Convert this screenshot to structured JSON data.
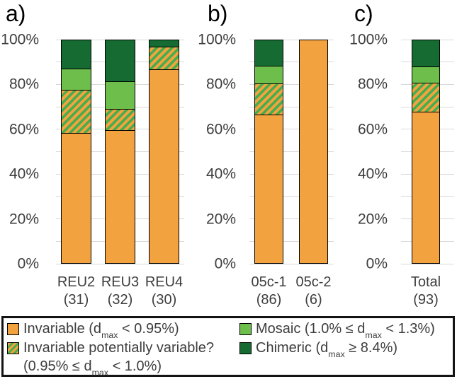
{
  "figure": {
    "background": "#FFFFFF"
  },
  "y_axis": {
    "tick_labels": [
      "0%",
      "20%",
      "40%",
      "60%",
      "80%",
      "100%"
    ],
    "minor_gridline_step_percent": 10,
    "range_percent": [
      0,
      100
    ],
    "grid": true
  },
  "chart_data": {
    "type": "bar",
    "stacked": true,
    "units": "percent",
    "series_order": [
      "invariable",
      "invariable_potentially_variable",
      "mosaic",
      "chimeric"
    ],
    "series_names": {
      "invariable": "Invariable (dmax < 0.95%)",
      "invariable_potentially_variable": "Invariable potentially variable? (0.95% <= dmax < 1.0%)",
      "mosaic": "Mosaic (1.0% <= dmax < 1.3%)",
      "chimeric": "Chimeric (dmax >= 8.4%)"
    },
    "panels": [
      {
        "id": "a",
        "letter": "a)",
        "bars": [
          {
            "label": "REU2",
            "n": "(31)",
            "segments": {
              "invariable": 58.1,
              "invariable_potentially_variable": 19.3,
              "mosaic": 9.7,
              "chimeric": 12.9
            }
          },
          {
            "label": "REU3",
            "n": "(32)",
            "segments": {
              "invariable": 59.4,
              "invariable_potentially_variable": 9.4,
              "mosaic": 12.5,
              "chimeric": 18.7
            }
          },
          {
            "label": "REU4",
            "n": "(30)",
            "segments": {
              "invariable": 86.7,
              "invariable_potentially_variable": 10.0,
              "mosaic": 0,
              "chimeric": 3.3
            }
          }
        ]
      },
      {
        "id": "b",
        "letter": "b)",
        "bars": [
          {
            "label": "05c-1",
            "n": "(86)",
            "segments": {
              "invariable": 66.3,
              "invariable_potentially_variable": 14.0,
              "mosaic": 8.1,
              "chimeric": 11.6
            }
          },
          {
            "label": "05c-2",
            "n": "(6)",
            "segments": {
              "invariable": 100,
              "invariable_potentially_variable": 0,
              "mosaic": 0,
              "chimeric": 0
            }
          }
        ]
      },
      {
        "id": "c",
        "letter": "c)",
        "bars": [
          {
            "label": "Total",
            "n": "(93)",
            "segments": {
              "invariable": 67.7,
              "invariable_potentially_variable": 12.9,
              "mosaic": 7.5,
              "chimeric": 11.9
            }
          }
        ]
      }
    ]
  },
  "legend": {
    "items": [
      {
        "key": "invariable",
        "swatch": "invariable",
        "lines": [
          [
            {
              "t": "Invariable (d"
            },
            {
              "sub": "max"
            },
            {
              "t": " < 0.95%)"
            }
          ]
        ]
      },
      {
        "key": "invariable-potentially-variable",
        "swatch": "hatch",
        "lines": [
          [
            {
              "t": "Invariable potentially variable?"
            }
          ],
          [
            {
              "t": "(0.95% ≤ d"
            },
            {
              "sub": "max"
            },
            {
              "t": " < 1.0%)"
            }
          ]
        ]
      },
      {
        "key": "mosaic",
        "swatch": "mosaic",
        "lines": [
          [
            {
              "t": "Mosaic (1.0% ≤ d"
            },
            {
              "sub": "max"
            },
            {
              "t": " < 1.3%)"
            }
          ]
        ]
      },
      {
        "key": "chimeric",
        "swatch": "chimeric",
        "lines": [
          [
            {
              "t": "Chimeric (d"
            },
            {
              "sub": "max"
            },
            {
              "t": " ≥ 8.4%)"
            }
          ]
        ]
      }
    ]
  },
  "colors": {
    "invariable_orange": "#F2A340",
    "hatch_stripe_green": "#44AD4D",
    "mosaic_green": "#6EBE4C",
    "chimeric_green": "#156B31",
    "gridline_gray": "#D9D9D9",
    "bar_border": "#000000",
    "text_gray": "#3D3D3D"
  }
}
